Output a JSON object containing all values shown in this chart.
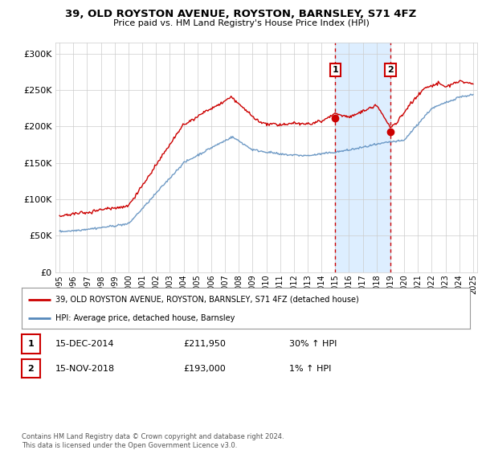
{
  "title": "39, OLD ROYSTON AVENUE, ROYSTON, BARNSLEY, S71 4FZ",
  "subtitle": "Price paid vs. HM Land Registry's House Price Index (HPI)",
  "legend_label_red": "39, OLD ROYSTON AVENUE, ROYSTON, BARNSLEY, S71 4FZ (detached house)",
  "legend_label_blue": "HPI: Average price, detached house, Barnsley",
  "transaction1_date": "15-DEC-2014",
  "transaction1_price": "£211,950",
  "transaction1_hpi": "30% ↑ HPI",
  "transaction1_year": 2015.0,
  "transaction1_value": 211950,
  "transaction2_date": "15-NOV-2018",
  "transaction2_price": "£193,000",
  "transaction2_hpi": "1% ↑ HPI",
  "transaction2_year": 2019.0,
  "transaction2_value": 193000,
  "footer": "Contains HM Land Registry data © Crown copyright and database right 2024.\nThis data is licensed under the Open Government Licence v3.0.",
  "red_color": "#cc0000",
  "blue_color": "#5588bb",
  "shaded_color": "#ddeeff",
  "background_color": "#ffffff",
  "grid_color": "#cccccc",
  "yticks": [
    0,
    50000,
    100000,
    150000,
    200000,
    250000,
    300000
  ],
  "ylim": [
    0,
    315000
  ],
  "xlim_start": 1994.7,
  "xlim_end": 2025.3
}
